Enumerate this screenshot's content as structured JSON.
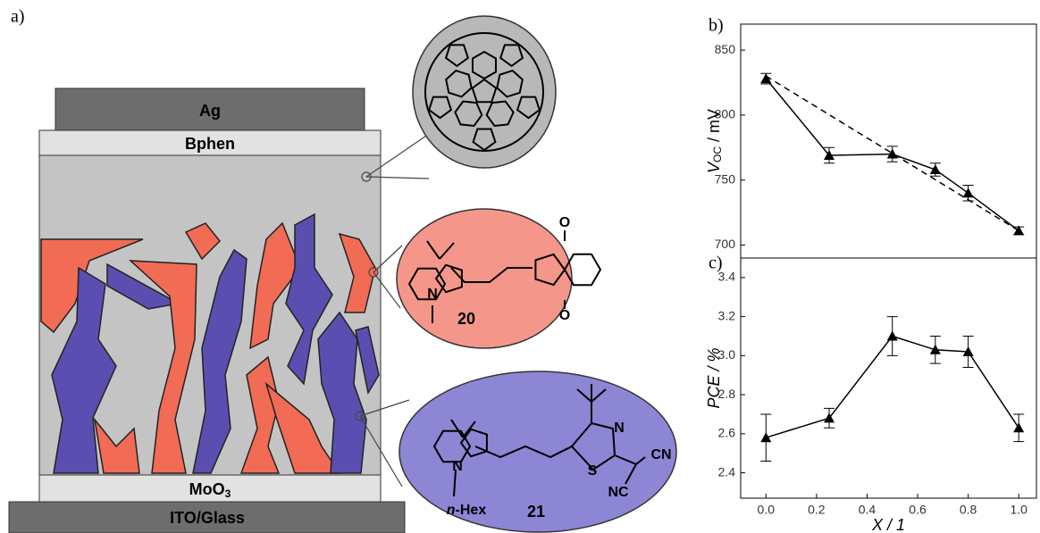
{
  "panels": {
    "a": "a)",
    "b": "b)",
    "c": "c)"
  },
  "layers": {
    "top_electrode": "Ag",
    "etl": "Bphen",
    "htl": [
      "MoO",
      "3"
    ],
    "substrate": "ITO/Glass"
  },
  "molecules": [
    {
      "number": "20",
      "atoms": [
        "N",
        "O",
        "O"
      ]
    },
    {
      "number": "21",
      "atoms": [
        "N",
        "N",
        "S",
        "CN",
        "NC"
      ],
      "substituent": [
        "n",
        "-Hex"
      ]
    }
  ],
  "chart_data": [
    {
      "type": "line",
      "ylabel": [
        "V",
        "OC",
        " / mV"
      ],
      "x": [
        0,
        0.25,
        0.5,
        0.67,
        0.8,
        1.0
      ],
      "xlim": [
        -0.1,
        1.07
      ],
      "ylim": [
        690,
        870
      ],
      "yticks": [
        700,
        750,
        800,
        850
      ],
      "series": [
        {
          "color": "#000000",
          "values": [
            828,
            769,
            770,
            758,
            740,
            711
          ],
          "errors": [
            4,
            6,
            6,
            5,
            6,
            3
          ]
        },
        {
          "color": "#000000",
          "dashed": true,
          "x": [
            0,
            1.0
          ],
          "values": [
            830,
            711
          ]
        }
      ]
    },
    {
      "type": "line",
      "ylabel": "PCE / %",
      "xlabel": "X / 1",
      "x": [
        0,
        0.25,
        0.5,
        0.67,
        0.8,
        1.0
      ],
      "xlim": [
        -0.1,
        1.07
      ],
      "xticks": [
        {
          "value": 0,
          "label": "0.0"
        },
        0.2,
        0.4,
        0.6,
        0.8,
        {
          "value": 1,
          "label": "1.0"
        }
      ],
      "ylim": [
        2.27,
        3.5
      ],
      "yticks": [
        2.4,
        2.6,
        2.8,
        {
          "value": 3,
          "label": "3.0"
        },
        3.2,
        3.4
      ],
      "series": [
        {
          "color": "#000000",
          "values": [
            2.58,
            2.68,
            3.1,
            3.03,
            3.02,
            2.63
          ],
          "errors": [
            0.12,
            0.05,
            0.1,
            0.07,
            0.08,
            0.07
          ]
        }
      ]
    }
  ]
}
